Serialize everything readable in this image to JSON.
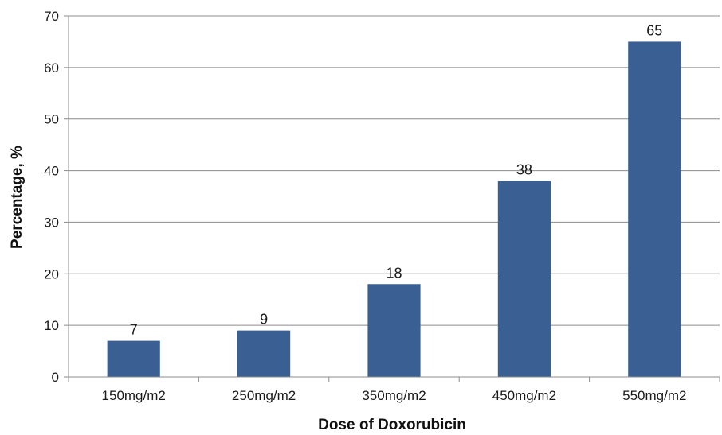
{
  "chart_data": {
    "type": "bar",
    "title": "",
    "xlabel": "Dose of Doxorubicin",
    "ylabel": "Percentage, %",
    "categories": [
      "150mg/m2",
      "250mg/m2",
      "350mg/m2",
      "450mg/m2",
      "550mg/m2"
    ],
    "values": [
      7,
      9,
      18,
      38,
      65
    ],
    "data_labels": [
      "7",
      "9",
      "18",
      "38",
      "65"
    ],
    "ylim": [
      0,
      70
    ],
    "yticks": [
      0,
      10,
      20,
      30,
      40,
      50,
      60,
      70
    ],
    "ytick_labels": [
      "0",
      "10",
      "20",
      "30",
      "40",
      "50",
      "60",
      "70"
    ],
    "grid": true,
    "legend": "none",
    "bar_color": "#3A5F92",
    "grid_color": "#8C8C8C"
  }
}
